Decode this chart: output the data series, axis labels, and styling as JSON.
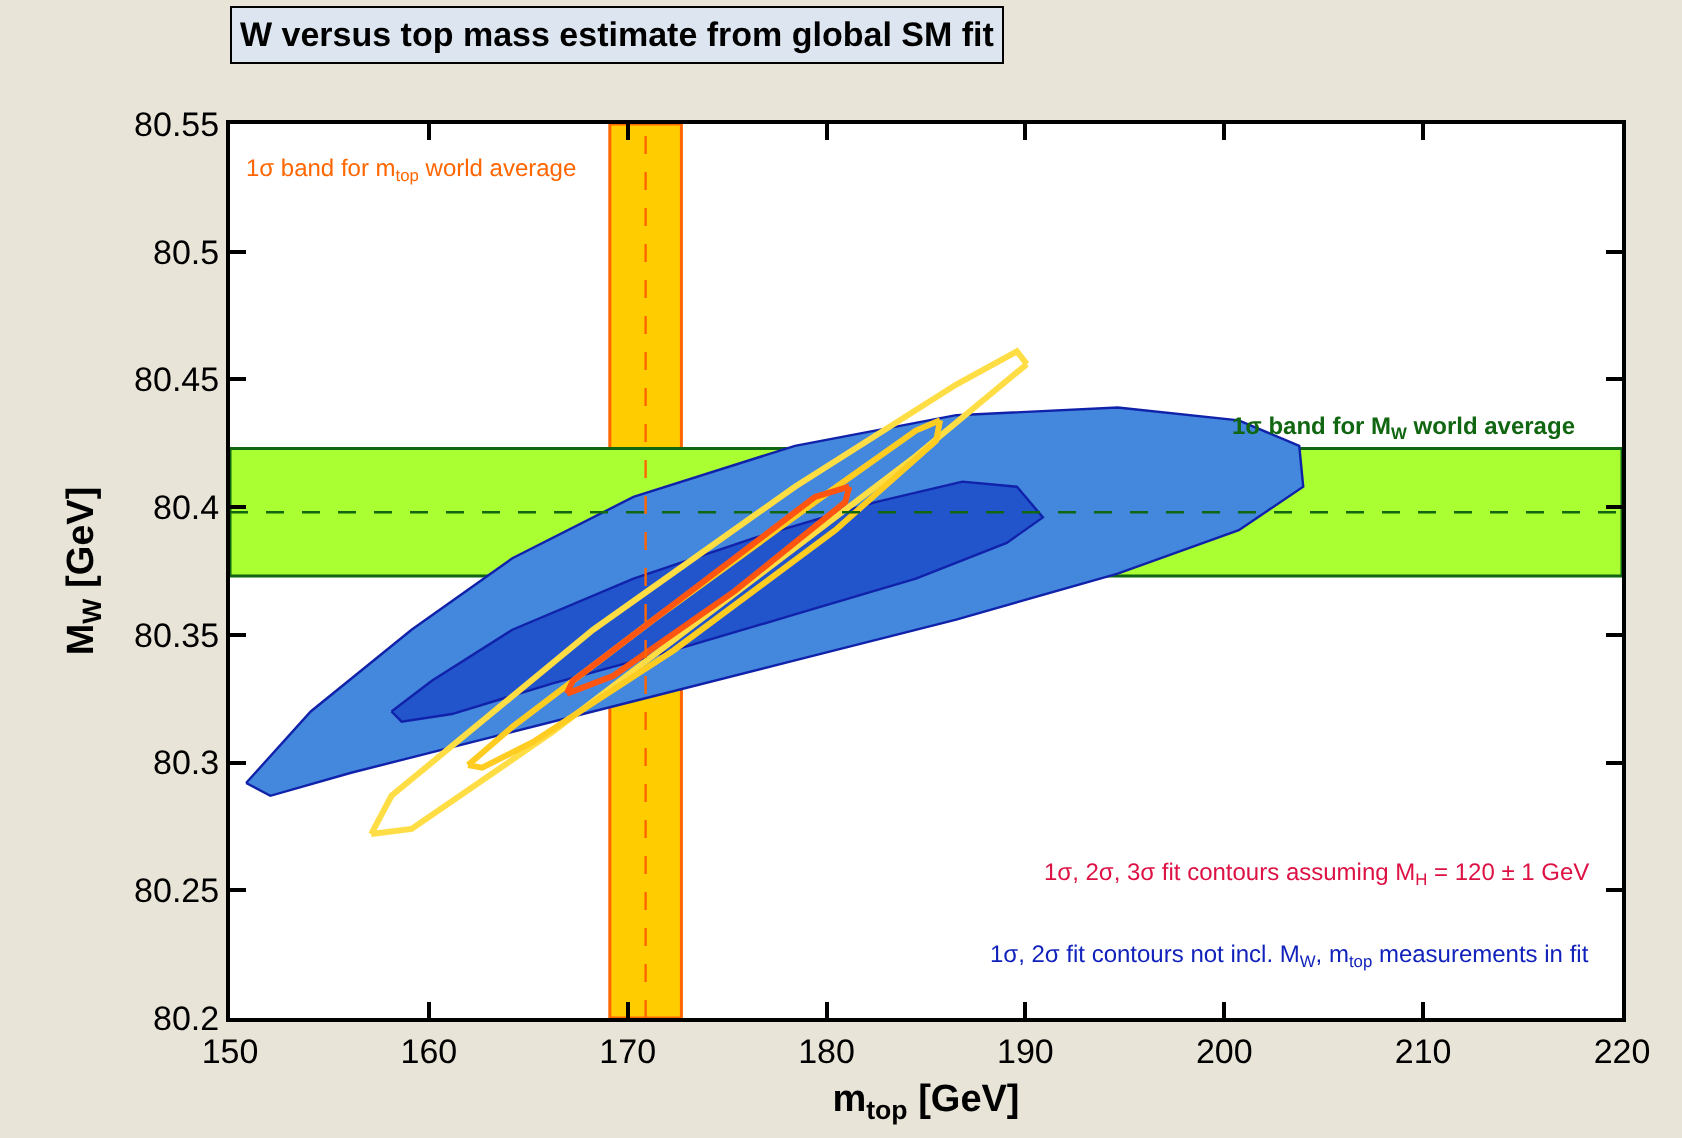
{
  "chart_data": {
    "type": "line",
    "title": "W versus top mass estimate from global SM fit",
    "xlabel": "m$_{top}$ [GeV]",
    "ylabel": "M$_{W}$ [GeV]",
    "xlim": [
      150,
      220
    ],
    "xticks": [
      150,
      160,
      170,
      180,
      190,
      200,
      210,
      220
    ],
    "ylim": [
      80.2,
      80.55
    ],
    "yticks": [
      80.2,
      80.25,
      80.3,
      80.35,
      80.4,
      80.45,
      80.5,
      80.55
    ],
    "grid": false,
    "marker": "none",
    "line_style": "solid",
    "series": [
      {
        "type": "area",
        "color": "#4488dd",
        "x": [
          150.81,
          154.06,
          159.13,
          164.2,
          170.29,
          178.41,
          186.52,
          194.64,
          200.73,
          203.77,
          203.97,
          200.73,
          194.64,
          186.52,
          178.41,
          170.29,
          162.17,
          156.09,
          152.03,
          150.81
        ],
        "values": [
          80.292,
          80.32,
          80.352,
          80.38,
          80.404,
          80.424,
          80.436,
          80.439,
          80.434,
          80.424,
          80.408,
          80.391,
          80.374,
          80.356,
          80.34,
          80.324,
          80.308,
          80.296,
          80.287,
          80.292
        ]
      },
      {
        "type": "area",
        "color": "#2255cc",
        "x": [
          158.12,
          160.15,
          164.2,
          170.29,
          176.38,
          182.46,
          186.83,
          189.57,
          190.88,
          189.06,
          184.49,
          178.41,
          172.32,
          166.23,
          161.16,
          158.63,
          158.12
        ],
        "values": [
          80.32,
          80.332,
          80.352,
          80.372,
          80.388,
          80.402,
          80.41,
          80.408,
          80.396,
          80.386,
          80.372,
          80.358,
          80.344,
          80.331,
          80.319,
          80.316,
          80.32
        ]
      },
      {
        "color": "#ffdd44",
        "x": [
          157.1,
          158.12,
          168.26,
          178.41,
          186.52,
          189.57,
          190.07
        ],
        "values": [
          80.272,
          80.287,
          80.352,
          80.408,
          80.448,
          80.461,
          80.456
        ]
      },
      {
        "color": "#ffdd44",
        "x": [
          157.1,
          159.13,
          166.23,
          176.38,
          184.49,
          190.07
        ],
        "values": [
          80.272,
          80.274,
          80.312,
          80.372,
          80.42,
          80.456
        ]
      },
      {
        "color": "#ffcc22",
        "x": [
          161.97,
          164.2,
          171.3,
          179.42,
          184.49,
          185.71
        ],
        "values": [
          80.299,
          80.314,
          80.356,
          80.402,
          80.43,
          80.434
        ]
      },
      {
        "color": "#ffcc22",
        "x": [
          161.97,
          162.68,
          165.22,
          172.32,
          180.44,
          185.51,
          185.71
        ],
        "values": [
          80.299,
          80.298,
          80.308,
          80.344,
          80.391,
          80.426,
          80.434
        ]
      },
      {
        "color": "#ff5511",
        "x": [
          166.94,
          167.24,
          173.33,
          179.42,
          181.14
        ],
        "values": [
          80.327,
          80.332,
          80.368,
          80.404,
          80.408
        ]
      },
      {
        "color": "#ff5511",
        "x": [
          166.94,
          169.28,
          175.36,
          180.94,
          181.14
        ],
        "values": [
          80.327,
          80.334,
          80.367,
          80.402,
          80.408
        ]
      }
    ],
    "bands": [
      {
        "axis": "x",
        "from": 169.1,
        "to": 172.7,
        "label": "1σ band for m$_{top}$ world average",
        "color": "#ffcc00"
      },
      {
        "axis": "y",
        "from": 80.373,
        "to": 80.423,
        "label": "1σ band for M$_{W}$ world average",
        "color": "#aaff33"
      }
    ],
    "ref_lines": [
      {
        "axis": "x",
        "value": 170.9,
        "color": "#ff6600",
        "line_style": "dashed"
      },
      {
        "axis": "y",
        "value": 80.398,
        "color": "#116611",
        "line_style": "dashed"
      }
    ],
    "annotations": [
      "1σ, 2σ, 3σ fit contours assuming M$_{H}$ = 120 ± 1 GeV",
      "1σ, 2σ fit contours not incl. M$_{W}$, m$_{top}$ measurements in fit"
    ]
  }
}
